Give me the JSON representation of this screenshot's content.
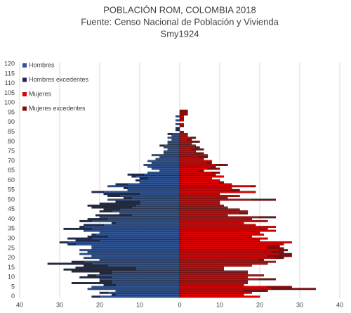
{
  "chart_data": {
    "type": "bar",
    "orientation": "horizontal",
    "stacked": true,
    "title": "POBLACIÓN ROM, COLOMBIA 2018",
    "subtitle": "Fuente: Censo Nacional de Población y Vivienda",
    "author": "Smy1924",
    "categories": [
      0,
      1,
      2,
      3,
      4,
      5,
      6,
      7,
      8,
      9,
      10,
      11,
      12,
      13,
      14,
      15,
      16,
      17,
      18,
      19,
      20,
      21,
      22,
      23,
      24,
      25,
      26,
      27,
      28,
      29,
      30,
      31,
      32,
      33,
      34,
      35,
      36,
      37,
      38,
      39,
      40,
      41,
      42,
      43,
      44,
      45,
      46,
      47,
      48,
      49,
      50,
      51,
      52,
      53,
      54,
      55,
      56,
      57,
      58,
      59,
      60,
      61,
      62,
      63,
      64,
      65,
      66,
      67,
      68,
      69,
      70,
      71,
      72,
      73,
      74,
      75,
      76,
      77,
      78,
      79,
      80,
      81,
      82,
      83,
      84,
      85,
      86,
      87,
      88,
      89,
      90,
      91,
      92,
      93,
      94,
      95,
      96
    ],
    "series": [
      {
        "name": "Hombres",
        "color": "#2f5597",
        "side": "left",
        "values": [
          -20,
          -16,
          -18,
          -16,
          -23,
          -22,
          -16,
          -17,
          -17,
          -20,
          -17,
          -21,
          -17,
          -17,
          -11,
          -11,
          -18,
          -22,
          -24,
          -20,
          -24,
          -22,
          -25,
          -23,
          -25,
          -22,
          -22,
          -26,
          -28,
          -20,
          -22,
          -18,
          -21,
          -20,
          -24,
          -22,
          -24,
          -19,
          -16,
          -22,
          -18,
          -20,
          -12,
          -15,
          -17,
          -15,
          -12,
          -11,
          -10,
          -10,
          -18,
          -12,
          -15,
          -10,
          -19,
          -13,
          -13,
          -18,
          -13,
          -10,
          -10,
          -8,
          -11,
          -9,
          -8,
          -5,
          -7,
          -8,
          -9,
          -7,
          -8,
          -6,
          -5,
          -7,
          -4,
          -4,
          -3,
          -4,
          -4,
          -3,
          -3,
          -2,
          -3,
          -2,
          -2,
          0,
          0,
          0,
          0,
          -1,
          0,
          -1,
          0,
          -1,
          0,
          0,
          0
        ]
      },
      {
        "name": "Hombres excedentes",
        "color": "#1f2a4d",
        "side": "left",
        "values": [
          -2,
          -1,
          -2,
          0,
          0,
          0,
          -3,
          -10,
          -3,
          0,
          -8,
          -2,
          -3,
          -10,
          -18,
          -15,
          -6,
          -11,
          -3,
          0,
          0,
          0,
          0,
          0,
          0,
          0,
          0,
          -2,
          -2,
          -6,
          -6,
          -5,
          -1,
          0,
          0,
          -7,
          -1,
          -5,
          -1,
          -3,
          -5,
          0,
          -9,
          0,
          -3,
          -4,
          -10,
          -12,
          -10,
          -6,
          0,
          -2,
          -3,
          -9,
          -3,
          0,
          -1,
          0,
          -3,
          0,
          -1,
          -2,
          -1,
          -4,
          0,
          0,
          0,
          0,
          0,
          0,
          0,
          0,
          0,
          0,
          0,
          0,
          0,
          0,
          -1,
          0,
          0,
          0,
          0,
          0,
          -1,
          0,
          -1,
          -1,
          0,
          0,
          0,
          0,
          0,
          0,
          0,
          0,
          0
        ]
      },
      {
        "name": "Mujeres",
        "color": "#e00000",
        "side": "right",
        "values": [
          20,
          16,
          18,
          16,
          23,
          22,
          16,
          17,
          17,
          20,
          17,
          21,
          17,
          17,
          11,
          11,
          18,
          22,
          24,
          20,
          24,
          22,
          25,
          23,
          25,
          22,
          22,
          26,
          28,
          20,
          22,
          18,
          21,
          20,
          24,
          22,
          24,
          19,
          16,
          22,
          18,
          20,
          12,
          15,
          17,
          15,
          12,
          11,
          10,
          10,
          18,
          12,
          15,
          10,
          19,
          13,
          13,
          18,
          13,
          10,
          10,
          8,
          11,
          9,
          8,
          5,
          7,
          8,
          9,
          7,
          8,
          6,
          5,
          7,
          4,
          4,
          3,
          4,
          4,
          3,
          3,
          2,
          3,
          2,
          2,
          0,
          0,
          0,
          0,
          1,
          0,
          1,
          0,
          1,
          0,
          0,
          0
        ]
      },
      {
        "name": "Mujeres excedentes",
        "color": "#8b0a0a",
        "side": "right",
        "values": [
          0,
          0,
          0,
          6,
          11,
          6,
          0,
          0,
          0,
          4,
          0,
          0,
          0,
          0,
          0,
          0,
          0,
          0,
          0,
          1,
          2,
          6,
          3,
          3,
          2,
          4,
          3,
          0,
          0,
          0,
          0,
          0,
          0,
          0,
          0,
          0,
          0,
          0,
          0,
          0,
          0,
          4,
          0,
          2,
          0,
          0,
          0,
          0,
          0,
          0,
          6,
          0,
          0,
          0,
          0,
          2,
          0,
          1,
          0,
          1,
          0,
          0,
          0,
          0,
          2,
          1,
          3,
          1,
          3,
          1,
          0,
          0,
          2,
          0,
          2,
          0,
          3,
          1,
          0,
          0,
          2,
          1,
          1,
          0,
          0,
          1,
          0,
          0,
          1,
          0,
          0,
          0,
          1,
          0,
          2,
          2,
          2
        ]
      }
    ],
    "xlim": [
      -40,
      40
    ],
    "xticks": [
      {
        "value": -40,
        "label": "40"
      },
      {
        "value": -30,
        "label": "30"
      },
      {
        "value": -20,
        "label": "20"
      },
      {
        "value": -10,
        "label": "10"
      },
      0,
      10,
      20,
      30,
      40
    ],
    "ylim": [
      -0.8,
      120.8
    ],
    "yticks": [
      0,
      5,
      10,
      15,
      20,
      25,
      30,
      35,
      40,
      45,
      50,
      55,
      60,
      65,
      70,
      75,
      80,
      85,
      90,
      95,
      100,
      105,
      110,
      115,
      120
    ],
    "grid": true,
    "legend": "upper left"
  }
}
